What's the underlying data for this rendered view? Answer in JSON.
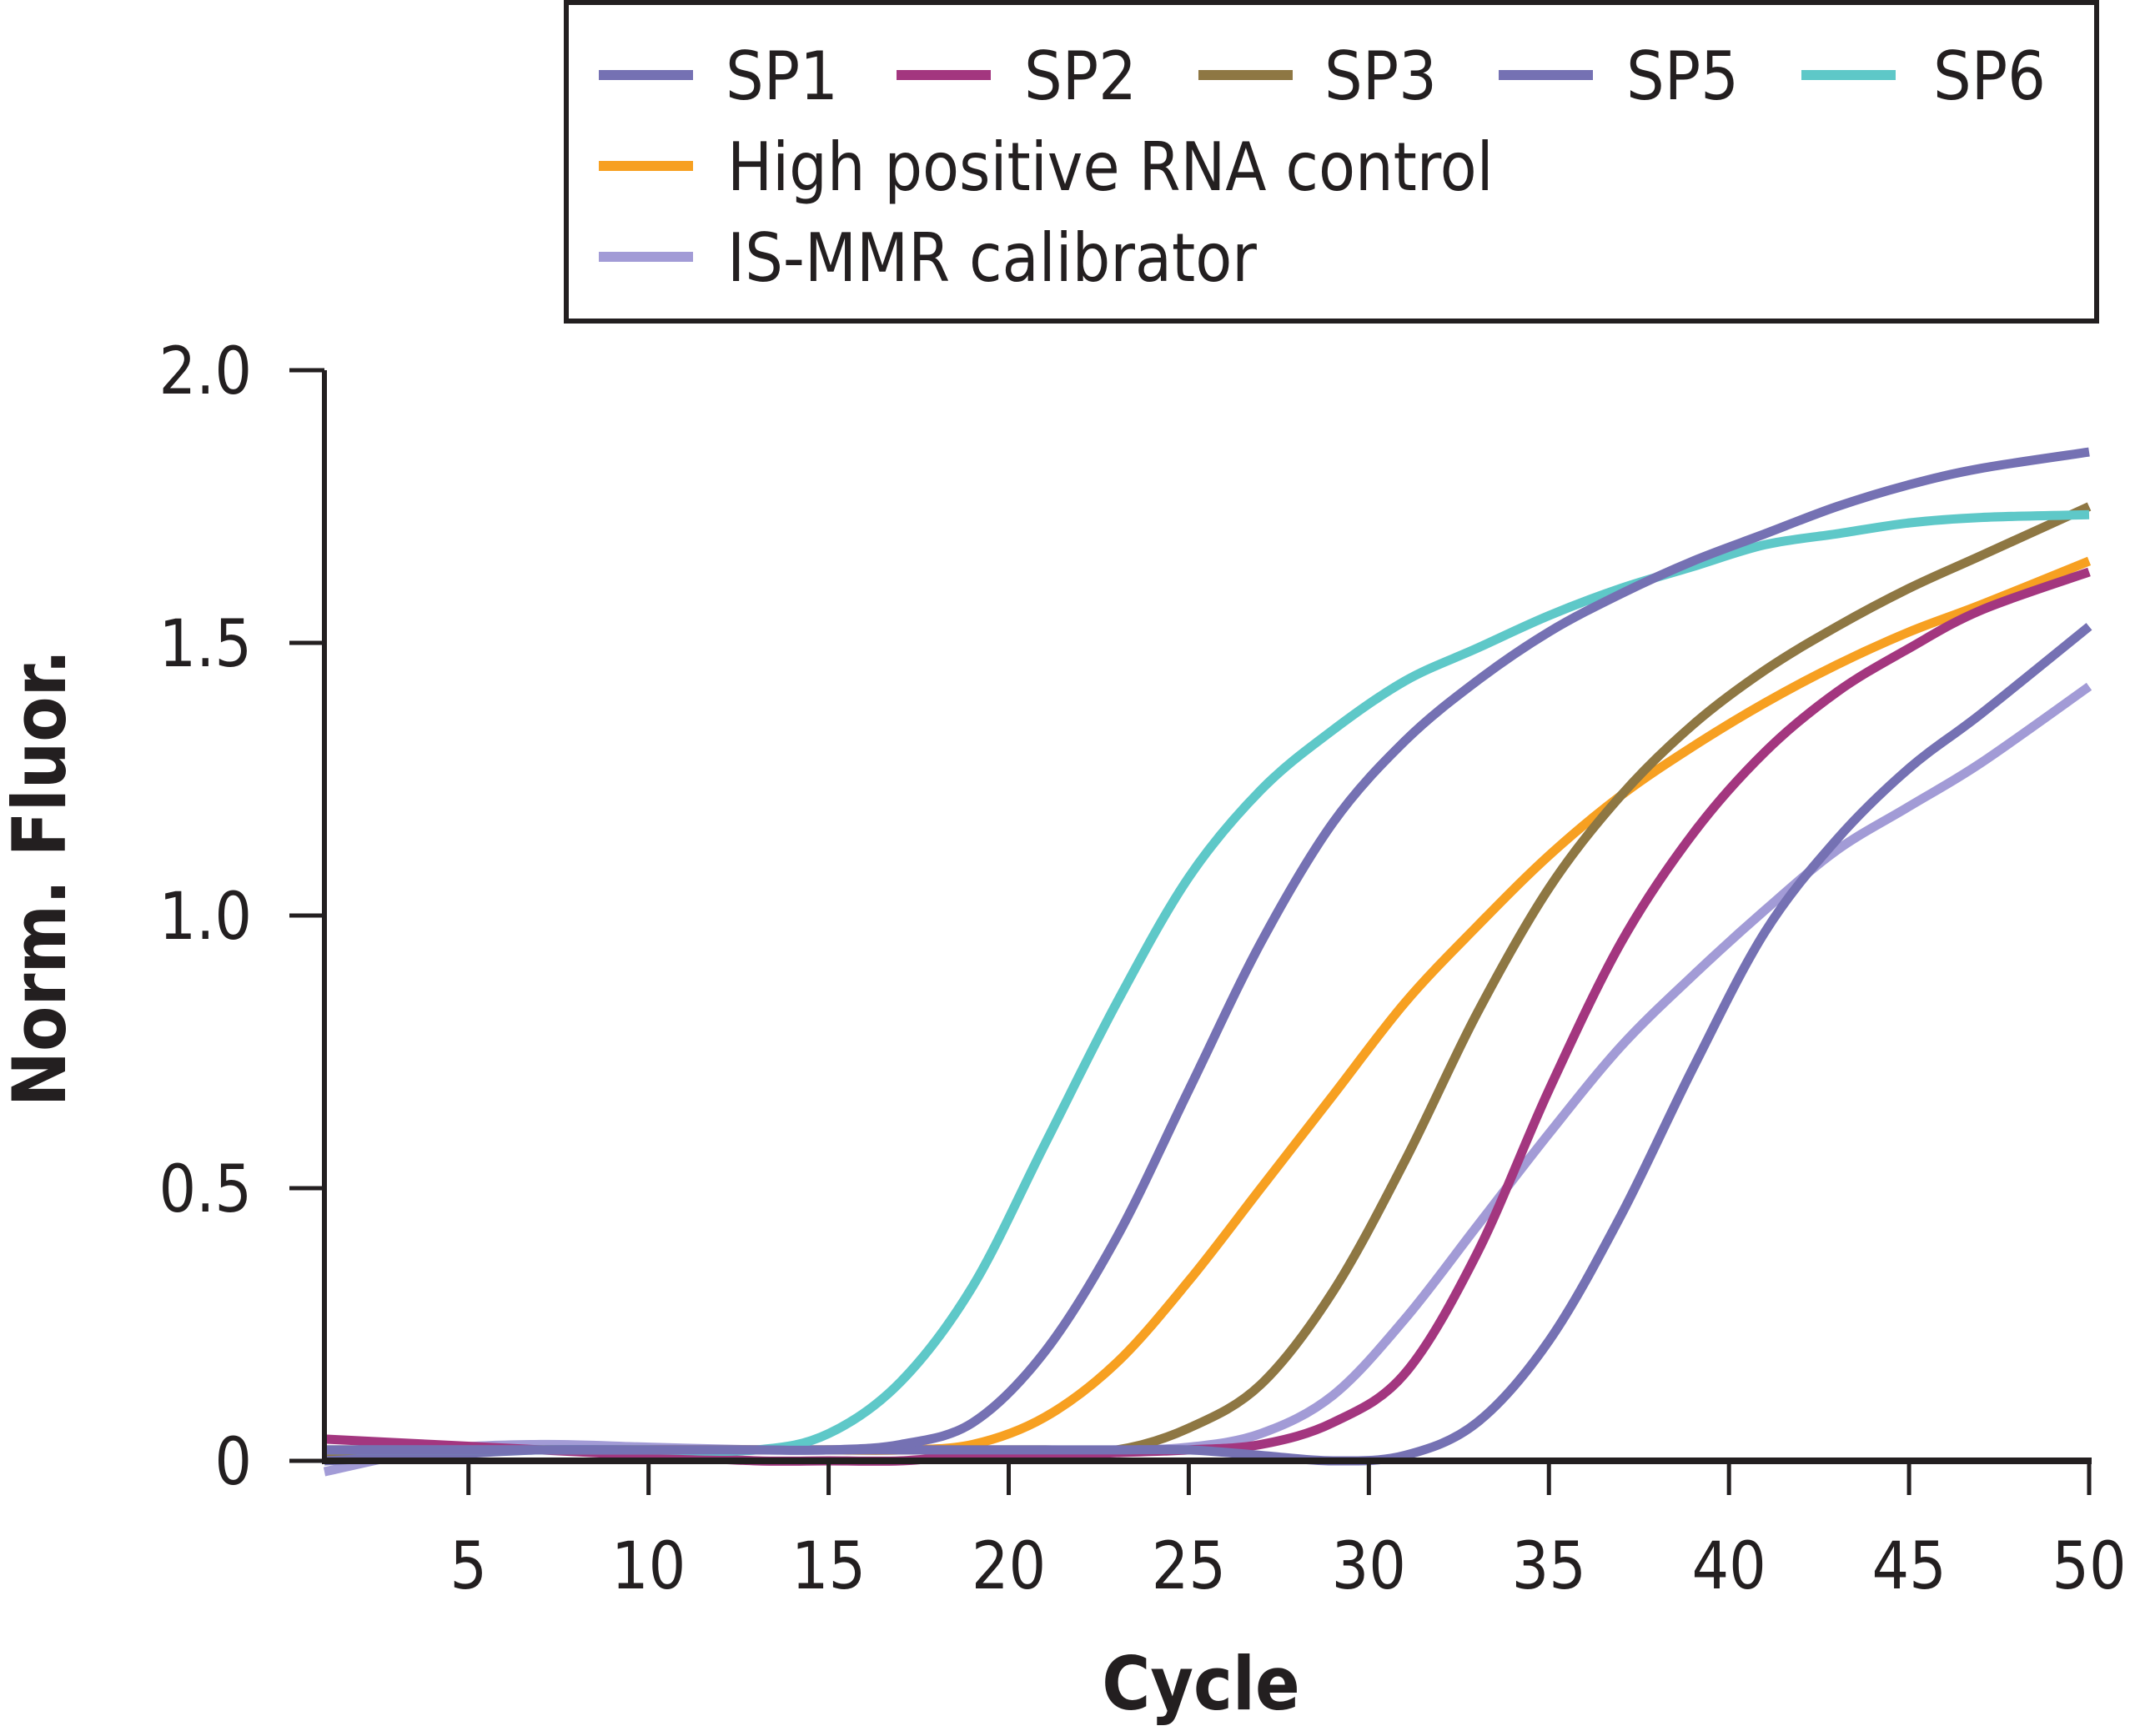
{
  "chart_data": {
    "type": "line",
    "title": "",
    "xlabel": "Cycle",
    "ylabel": "Norm. Fluor.",
    "xlim": [
      1,
      50
    ],
    "ylim": [
      0,
      2.0
    ],
    "xticks": [
      5,
      10,
      15,
      20,
      25,
      30,
      35,
      40,
      45,
      50
    ],
    "xtick_labels": [
      "5",
      "10",
      "15",
      "20",
      "25",
      "30",
      "35",
      "40",
      "45",
      "50"
    ],
    "yticks": [
      0,
      0.5,
      1.0,
      1.5,
      2.0
    ],
    "ytick_labels": [
      "0",
      "0.5",
      "1.0",
      "1.5",
      "2.0"
    ],
    "grid": false,
    "legend_position": "top-right",
    "x": [
      1,
      4,
      7,
      10,
      13,
      15,
      17,
      19,
      21,
      23,
      25,
      27,
      29,
      31,
      33,
      35,
      37,
      39,
      41,
      43,
      45,
      47,
      50
    ],
    "series": [
      {
        "name": "SP1",
        "color": "#7571b3",
        "values": [
          0.02,
          0.02,
          0.02,
          0.02,
          0.02,
          0.02,
          0.03,
          0.07,
          0.2,
          0.41,
          0.68,
          0.95,
          1.17,
          1.32,
          1.43,
          1.52,
          1.59,
          1.65,
          1.7,
          1.75,
          1.79,
          1.82,
          1.85
        ]
      },
      {
        "name": "SP2",
        "color": "#a3367f",
        "values": [
          0.04,
          0.03,
          0.02,
          0.01,
          0.0,
          0.0,
          0.0,
          0.01,
          0.01,
          0.015,
          0.02,
          0.03,
          0.07,
          0.16,
          0.38,
          0.68,
          0.95,
          1.15,
          1.3,
          1.41,
          1.49,
          1.56,
          1.63
        ]
      },
      {
        "name": "SP3",
        "color": "#8e7743",
        "values": [
          0.01,
          0.02,
          0.02,
          0.02,
          0.02,
          0.02,
          0.02,
          0.02,
          0.02,
          0.02,
          0.06,
          0.14,
          0.31,
          0.55,
          0.82,
          1.05,
          1.22,
          1.35,
          1.45,
          1.53,
          1.6,
          1.66,
          1.75
        ]
      },
      {
        "name": "SP5",
        "color": "#7571b3",
        "values": [
          0.0,
          0.01,
          0.02,
          0.02,
          0.02,
          0.02,
          0.02,
          0.02,
          0.02,
          0.02,
          0.02,
          0.01,
          0.0,
          0.01,
          0.07,
          0.22,
          0.45,
          0.72,
          0.97,
          1.14,
          1.27,
          1.37,
          1.53
        ]
      },
      {
        "name": "SP6",
        "color": "#5ec8c8",
        "values": [
          0.02,
          0.02,
          0.02,
          0.02,
          0.02,
          0.05,
          0.145,
          0.32,
          0.58,
          0.84,
          1.07,
          1.23,
          1.34,
          1.43,
          1.49,
          1.55,
          1.6,
          1.64,
          1.68,
          1.7,
          1.72,
          1.73,
          1.735
        ]
      },
      {
        "name": "High positive RNA control",
        "color": "#f7a021",
        "values": [
          0.02,
          0.02,
          0.02,
          0.02,
          0.02,
          0.02,
          0.02,
          0.03,
          0.08,
          0.18,
          0.33,
          0.5,
          0.67,
          0.84,
          0.98,
          1.11,
          1.22,
          1.31,
          1.39,
          1.46,
          1.52,
          1.57,
          1.65
        ]
      },
      {
        "name": "IS-MMR calibrator",
        "color": "#a29bd6",
        "values": [
          -0.02,
          0.02,
          0.03,
          0.025,
          0.02,
          0.02,
          0.02,
          0.02,
          0.02,
          0.02,
          0.025,
          0.05,
          0.12,
          0.26,
          0.43,
          0.6,
          0.76,
          0.89,
          1.01,
          1.12,
          1.2,
          1.28,
          1.42
        ]
      }
    ]
  }
}
